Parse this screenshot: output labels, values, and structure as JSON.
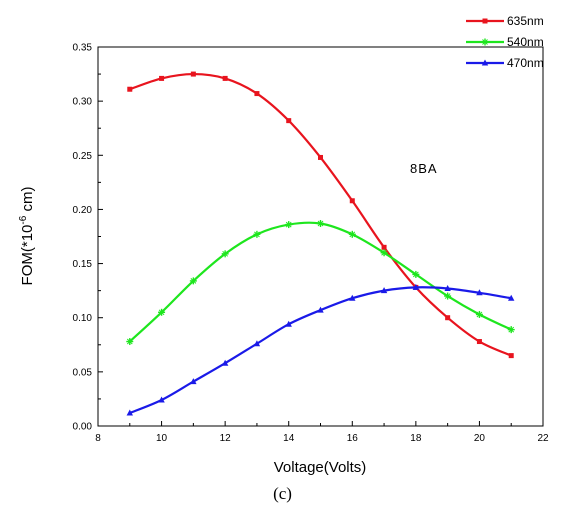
{
  "chart_data": {
    "type": "line",
    "xlabel": "Voltage(Volts)",
    "ylabel_main": "FOM(*10",
    "ylabel_sup": "-6",
    "ylabel_tail": " cm)",
    "xlim": [
      8,
      22
    ],
    "ylim": [
      0.0,
      0.35
    ],
    "xticks": [
      "8",
      "10",
      "12",
      "14",
      "16",
      "18",
      "20",
      "22"
    ],
    "yticks": [
      "0.00",
      "0.05",
      "0.10",
      "0.15",
      "0.20",
      "0.25",
      "0.30",
      "0.35"
    ],
    "annotation": "8BA",
    "legend_position": "top-right",
    "series": [
      {
        "name": "635nm",
        "color": "#e8141e",
        "marker": "square",
        "x": [
          9,
          10,
          11,
          12,
          13,
          14,
          15,
          16,
          17,
          18,
          19,
          20,
          21
        ],
        "y": [
          0.311,
          0.321,
          0.325,
          0.321,
          0.307,
          0.282,
          0.248,
          0.208,
          0.165,
          0.128,
          0.1,
          0.078,
          0.065
        ]
      },
      {
        "name": "540nm",
        "color": "#1ee61e",
        "marker": "star",
        "x": [
          9,
          10,
          11,
          12,
          13,
          14,
          15,
          16,
          17,
          18,
          19,
          20,
          21
        ],
        "y": [
          0.078,
          0.105,
          0.134,
          0.159,
          0.177,
          0.186,
          0.187,
          0.177,
          0.16,
          0.14,
          0.12,
          0.103,
          0.089
        ]
      },
      {
        "name": "470nm",
        "color": "#1a1ae8",
        "marker": "triangle",
        "x": [
          9,
          10,
          11,
          12,
          13,
          14,
          15,
          16,
          17,
          18,
          19,
          20,
          21
        ],
        "y": [
          0.012,
          0.024,
          0.041,
          0.058,
          0.076,
          0.094,
          0.107,
          0.118,
          0.125,
          0.128,
          0.127,
          0.123,
          0.118
        ]
      }
    ]
  },
  "caption": "(c)"
}
